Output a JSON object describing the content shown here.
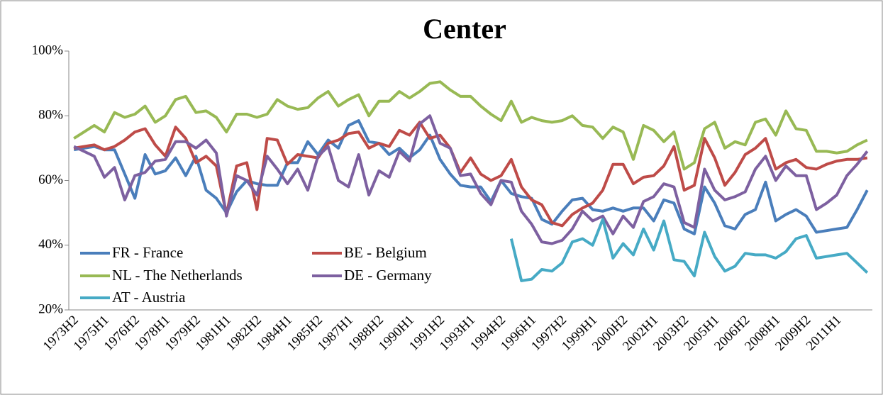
{
  "chart_data": {
    "type": "line",
    "title": "Center",
    "categories": [
      "1973H2",
      null,
      null,
      "1975H1",
      null,
      null,
      "1976H2",
      null,
      null,
      "1978H1",
      null,
      null,
      "1979H2",
      null,
      null,
      "1981H1",
      null,
      null,
      "1982H2",
      null,
      null,
      "1984H1",
      null,
      null,
      "1985H2",
      null,
      null,
      "1987H1",
      null,
      null,
      "1988H2",
      null,
      null,
      "1990H1",
      null,
      null,
      "1991H2",
      null,
      null,
      "1993H1",
      null,
      null,
      "1994H2",
      null,
      null,
      "1996H1",
      null,
      null,
      "1997H2",
      null,
      null,
      "1999H1",
      null,
      null,
      "2000H2",
      null,
      null,
      "2002H1",
      null,
      null,
      "2003H2",
      null,
      null,
      "2005H1",
      null,
      null,
      "2006H2",
      null,
      null,
      "2008H1",
      null,
      null,
      "2009H2",
      null,
      null,
      "2011H1",
      null,
      null,
      null
    ],
    "series": [
      {
        "name": "FR - France",
        "color": "#4a7ebb",
        "values": [
          69.5,
          70,
          70.5,
          69.5,
          69.5,
          62,
          54.5,
          68,
          62,
          63,
          67,
          61.5,
          67.5,
          57,
          54.5,
          50,
          56.5,
          60,
          59,
          58.5,
          58.5,
          65.5,
          65.5,
          72,
          68,
          72.5,
          70,
          77,
          78.5,
          72,
          71.5,
          68,
          70,
          67,
          69.5,
          74,
          66.5,
          62,
          58.5,
          58,
          58,
          53.5,
          60,
          56,
          55,
          54.5,
          48,
          46.5,
          50.5,
          54,
          54.5,
          51,
          50.5,
          51.5,
          50.5,
          51.5,
          51.5,
          47.5,
          54,
          53,
          45,
          43.5,
          58,
          53,
          46,
          45,
          49.5,
          51,
          59.5,
          47.5,
          49.5,
          51,
          49,
          44,
          44.5,
          45,
          45.5,
          51,
          57
        ]
      },
      {
        "name": "BE - Belgium",
        "color": "#be4b48",
        "values": [
          70,
          70.5,
          71,
          69.5,
          70.5,
          72.5,
          75,
          76,
          71,
          67.5,
          76.5,
          73,
          65.5,
          67.5,
          64.5,
          49.5,
          64.5,
          65.5,
          51,
          73,
          72.5,
          65,
          68,
          67.5,
          67,
          71.5,
          72.5,
          74.5,
          75,
          70,
          71.5,
          70.5,
          75.5,
          74,
          78,
          73,
          74,
          70,
          62.5,
          67,
          62,
          60,
          61.5,
          66.5,
          58,
          54,
          52.5,
          47,
          46,
          49.5,
          51.5,
          53,
          57,
          65,
          65,
          59,
          61,
          61.5,
          64.5,
          70.5,
          57,
          58.5,
          73,
          67,
          58.5,
          62.5,
          68,
          70,
          73,
          63.5,
          65.5,
          66.5,
          64,
          63.5,
          65,
          66,
          66.5,
          66.5,
          67
        ]
      },
      {
        "name": "NL - The Netherlands",
        "color": "#98b954",
        "values": [
          73,
          75,
          77,
          75,
          81,
          79.5,
          80.5,
          83,
          78,
          80,
          85,
          86,
          81,
          81.5,
          79.5,
          75,
          80.5,
          80.5,
          79.5,
          80.5,
          85,
          83,
          82,
          82.5,
          85.5,
          87.5,
          83,
          85,
          86.5,
          80,
          84.5,
          84.5,
          87.5,
          85.5,
          87.5,
          90,
          90.5,
          88,
          86,
          86,
          83,
          80.5,
          78.5,
          84.5,
          78,
          79.5,
          78.5,
          78,
          78.5,
          80,
          77,
          76.5,
          73,
          76.5,
          75,
          66.5,
          77,
          75.5,
          72,
          75,
          63.5,
          65.5,
          76,
          78,
          70,
          72,
          71,
          78,
          79,
          74,
          81.5,
          76,
          75.5,
          69,
          69,
          68.5,
          69,
          71,
          72.5
        ]
      },
      {
        "name": "DE - Germany",
        "color": "#7d60a0",
        "values": [
          70.5,
          69,
          67.5,
          61,
          64,
          54,
          61.5,
          62.5,
          66,
          66.5,
          72,
          72,
          70,
          72.5,
          68.5,
          49,
          61.5,
          60,
          55.5,
          67.5,
          63.5,
          59,
          63.5,
          57,
          67.5,
          70.5,
          60,
          58,
          68,
          55.5,
          63,
          61,
          69,
          66,
          77.5,
          80,
          71.5,
          70,
          61.5,
          62,
          56,
          52.5,
          60,
          59.5,
          50.5,
          46.5,
          41,
          40.5,
          41.5,
          45,
          50.5,
          47.5,
          49,
          43.5,
          49,
          45.5,
          53.5,
          55,
          59,
          58,
          47,
          45.5,
          63.5,
          57,
          54,
          55,
          56.5,
          63.5,
          67.5,
          60,
          64.5,
          61.5,
          61.5,
          51,
          53,
          55.5,
          61.5,
          65,
          69
        ]
      },
      {
        "name": "AT - Austria",
        "color": "#46aac5",
        "values": [
          null,
          null,
          null,
          null,
          null,
          null,
          null,
          null,
          null,
          null,
          null,
          null,
          null,
          null,
          null,
          null,
          null,
          null,
          null,
          null,
          null,
          null,
          null,
          null,
          null,
          null,
          null,
          null,
          null,
          null,
          null,
          null,
          null,
          null,
          null,
          null,
          null,
          null,
          null,
          null,
          null,
          null,
          null,
          42,
          29,
          29.5,
          32.5,
          32,
          34.5,
          41,
          42,
          40,
          48,
          36,
          40.5,
          37,
          45,
          38.5,
          47.5,
          35.5,
          35,
          30.5,
          44,
          36.5,
          32,
          33.5,
          37.5,
          37,
          37,
          36,
          38,
          42,
          43,
          36,
          36.5,
          37,
          37.5,
          34.5,
          31.5
        ]
      }
    ],
    "ylim": [
      20,
      100
    ],
    "yticks": [
      {
        "value": 20,
        "label": "20%"
      },
      {
        "value": 40,
        "label": "40%"
      },
      {
        "value": 60,
        "label": "60%"
      },
      {
        "value": 80,
        "label": "80%"
      },
      {
        "value": 100,
        "label": "100%"
      }
    ],
    "grid": false
  }
}
